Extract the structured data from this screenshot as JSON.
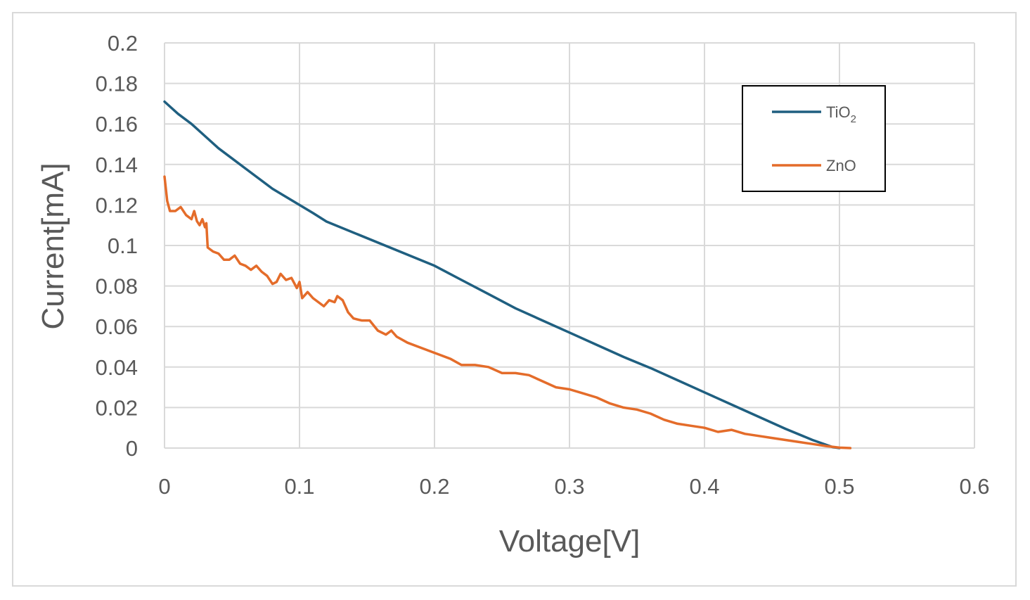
{
  "chart_data": {
    "type": "line",
    "title": "",
    "xlabel": "Voltage[V]",
    "ylabel": "Current[mA]",
    "xlim": [
      0,
      0.6
    ],
    "ylim": [
      0,
      0.2
    ],
    "xticks": [
      "0",
      "0.1",
      "0.2",
      "0.3",
      "0.4",
      "0.5",
      "0.6"
    ],
    "yticks": [
      "0",
      "0.02",
      "0.04",
      "0.06",
      "0.08",
      "0.1",
      "0.12",
      "0.14",
      "0.16",
      "0.18",
      "0.2"
    ],
    "grid": true,
    "legend_position": "top-right",
    "series": [
      {
        "name_main": "TiO",
        "name_sub": "2",
        "color": "#1f5f80",
        "points": [
          [
            0,
            0.171
          ],
          [
            0.01,
            0.165
          ],
          [
            0.02,
            0.16
          ],
          [
            0.03,
            0.154
          ],
          [
            0.04,
            0.148
          ],
          [
            0.05,
            0.143
          ],
          [
            0.06,
            0.138
          ],
          [
            0.07,
            0.133
          ],
          [
            0.08,
            0.128
          ],
          [
            0.09,
            0.124
          ],
          [
            0.1,
            0.12
          ],
          [
            0.11,
            0.116
          ],
          [
            0.12,
            0.1118
          ],
          [
            0.13,
            0.1076
          ],
          [
            0.14,
            0.1034
          ],
          [
            0.15,
            0.0992
          ],
          [
            0.16,
            0.095
          ],
          [
            0.17,
            0.0908
          ],
          [
            0.18,
            0.0866
          ],
          [
            0.19,
            0.0824
          ],
          [
            0.2,
            0.09
          ],
          [
            0.22,
            0.083
          ],
          [
            0.24,
            0.076
          ],
          [
            0.26,
            0.069
          ],
          [
            0.28,
            0.063
          ],
          [
            0.3,
            0.057
          ],
          [
            0.32,
            0.051
          ],
          [
            0.34,
            0.045
          ],
          [
            0.36,
            0.0395
          ],
          [
            0.38,
            0.0335
          ],
          [
            0.4,
            0.0275
          ],
          [
            0.42,
            0.0215
          ],
          [
            0.44,
            0.0155
          ],
          [
            0.46,
            0.0095
          ],
          [
            0.48,
            0.004
          ],
          [
            0.495,
            0.0005
          ],
          [
            0.5,
            0.0
          ]
        ]
      },
      {
        "name_main": "ZnO",
        "name_sub": "",
        "color": "#e46c2a",
        "points": [
          [
            0,
            0.134
          ],
          [
            0.002,
            0.122
          ],
          [
            0.004,
            0.117
          ],
          [
            0.008,
            0.117
          ],
          [
            0.012,
            0.119
          ],
          [
            0.016,
            0.115
          ],
          [
            0.02,
            0.113
          ],
          [
            0.022,
            0.117
          ],
          [
            0.024,
            0.112
          ],
          [
            0.026,
            0.11
          ],
          [
            0.028,
            0.113
          ],
          [
            0.03,
            0.109
          ],
          [
            0.031,
            0.111
          ],
          [
            0.032,
            0.099
          ],
          [
            0.036,
            0.097
          ],
          [
            0.04,
            0.096
          ],
          [
            0.044,
            0.093
          ],
          [
            0.048,
            0.093
          ],
          [
            0.052,
            0.095
          ],
          [
            0.056,
            0.091
          ],
          [
            0.06,
            0.09
          ],
          [
            0.064,
            0.088
          ],
          [
            0.068,
            0.09
          ],
          [
            0.072,
            0.087
          ],
          [
            0.076,
            0.085
          ],
          [
            0.08,
            0.081
          ],
          [
            0.083,
            0.082
          ],
          [
            0.086,
            0.086
          ],
          [
            0.09,
            0.083
          ],
          [
            0.094,
            0.084
          ],
          [
            0.098,
            0.079
          ],
          [
            0.1,
            0.082
          ],
          [
            0.102,
            0.074
          ],
          [
            0.106,
            0.077
          ],
          [
            0.11,
            0.074
          ],
          [
            0.114,
            0.072
          ],
          [
            0.118,
            0.07
          ],
          [
            0.122,
            0.073
          ],
          [
            0.126,
            0.072
          ],
          [
            0.128,
            0.075
          ],
          [
            0.132,
            0.073
          ],
          [
            0.136,
            0.067
          ],
          [
            0.14,
            0.064
          ],
          [
            0.146,
            0.063
          ],
          [
            0.152,
            0.063
          ],
          [
            0.158,
            0.058
          ],
          [
            0.164,
            0.056
          ],
          [
            0.168,
            0.058
          ],
          [
            0.172,
            0.055
          ],
          [
            0.18,
            0.052
          ],
          [
            0.188,
            0.05
          ],
          [
            0.196,
            0.048
          ],
          [
            0.204,
            0.046
          ],
          [
            0.212,
            0.044
          ],
          [
            0.22,
            0.041
          ],
          [
            0.23,
            0.041
          ],
          [
            0.24,
            0.04
          ],
          [
            0.25,
            0.037
          ],
          [
            0.26,
            0.037
          ],
          [
            0.27,
            0.036
          ],
          [
            0.28,
            0.033
          ],
          [
            0.29,
            0.03
          ],
          [
            0.3,
            0.029
          ],
          [
            0.31,
            0.027
          ],
          [
            0.32,
            0.025
          ],
          [
            0.33,
            0.022
          ],
          [
            0.34,
            0.02
          ],
          [
            0.35,
            0.019
          ],
          [
            0.36,
            0.017
          ],
          [
            0.37,
            0.014
          ],
          [
            0.38,
            0.012
          ],
          [
            0.39,
            0.011
          ],
          [
            0.4,
            0.01
          ],
          [
            0.41,
            0.008
          ],
          [
            0.42,
            0.009
          ],
          [
            0.43,
            0.007
          ],
          [
            0.44,
            0.006
          ],
          [
            0.45,
            0.005
          ],
          [
            0.46,
            0.004
          ],
          [
            0.47,
            0.003
          ],
          [
            0.48,
            0.002
          ],
          [
            0.49,
            0.001
          ],
          [
            0.5,
            0.0002
          ],
          [
            0.508,
            0.0
          ]
        ]
      }
    ]
  }
}
